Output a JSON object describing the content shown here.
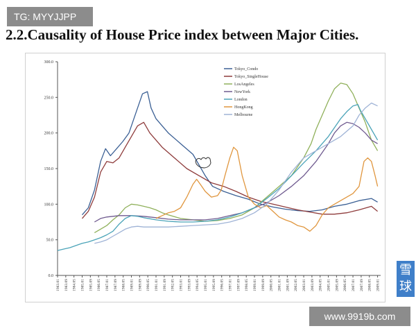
{
  "watermark": {
    "telegram": "TG: MYYJJPP",
    "url": "www.9919b.com",
    "side_glyphs": "雪球"
  },
  "page_title": "2.2.Causality of House Price index between Major Cities.",
  "colors": {
    "Tokyo_Condo": "#3a5f94",
    "Tokyo_SingleHouse": "#8e3b3b",
    "LosAngeles": "#8fb05a",
    "NewYork": "#6f5a8f",
    "London": "#4aa3b8",
    "HongKong": "#e0963e",
    "Melbourne": "#9fb3d6"
  },
  "chart_data": {
    "type": "line",
    "title": "",
    "xlabel": "",
    "ylabel": "",
    "ylim": [
      0,
      300
    ],
    "yticks": [
      "0.0",
      "50.0",
      "100.0",
      "150.0",
      "200.0",
      "250.0",
      "300.0"
    ],
    "xlim": [
      1983,
      2009.25
    ],
    "xticks": [
      "1983.01",
      "1983.09",
      "1984.05",
      "1985.01",
      "1985.09",
      "1986.05",
      "1987.01",
      "1987.09",
      "1988.05",
      "1989.01",
      "1989.09",
      "1990.05",
      "1991.01",
      "1991.09",
      "1992.05",
      "1993.01",
      "1993.09",
      "1994.05",
      "1995.01",
      "1995.09",
      "1996.05",
      "1997.01",
      "1997.09",
      "1998.05",
      "1999.01",
      "1999.09",
      "2000.05",
      "2001.01",
      "2001.09",
      "2002.05",
      "2003.01",
      "2003.09",
      "2004.05",
      "2005.01",
      "2005.09",
      "2006.05",
      "2007.01",
      "2007.09",
      "2008.05",
      "2009.01"
    ],
    "series": [
      {
        "name": "Tokyo_Condo",
        "color_key": "Tokyo_Condo",
        "x": [
          1985.0,
          1985.5,
          1986.0,
          1986.5,
          1986.9,
          1987.3,
          1987.8,
          1988.3,
          1988.8,
          1989.4,
          1989.9,
          1990.3,
          1990.6,
          1991.0,
          1991.5,
          1992.0,
          1993.0,
          1994.0,
          1995.0,
          1995.6,
          1996.5,
          1997.5,
          1998.5,
          1999.5,
          2000.5,
          2001.5,
          2002.5,
          2003.5,
          2004.5,
          2005.5,
          2006.5,
          2007.5,
          2008.5,
          2009.0
        ],
        "y": [
          85,
          95,
          120,
          160,
          178,
          168,
          178,
          188,
          200,
          230,
          255,
          258,
          235,
          220,
          210,
          200,
          185,
          170,
          140,
          125,
          118,
          112,
          107,
          100,
          96,
          93,
          91,
          90,
          92,
          97,
          100,
          105,
          108,
          103
        ]
      },
      {
        "name": "Tokyo_SingleHouse",
        "color_key": "Tokyo_SingleHouse",
        "x": [
          1985.0,
          1985.5,
          1986.0,
          1986.5,
          1987.0,
          1987.5,
          1988.0,
          1988.5,
          1989.0,
          1989.5,
          1990.0,
          1990.5,
          1991.0,
          1991.5,
          1992.5,
          1993.5,
          1994.5,
          1995.5,
          1996.5,
          1997.5,
          1998.5,
          1999.5,
          2000.5,
          2001.5,
          2002.5,
          2003.5,
          2004.5,
          2005.5,
          2006.5,
          2007.5,
          2008.5,
          2009.0
        ],
        "y": [
          80,
          90,
          110,
          145,
          160,
          158,
          165,
          180,
          195,
          210,
          215,
          200,
          190,
          180,
          165,
          150,
          140,
          130,
          125,
          118,
          110,
          104,
          100,
          96,
          92,
          89,
          86,
          86,
          88,
          92,
          97,
          90
        ]
      },
      {
        "name": "LosAngeles",
        "color_key": "LosAngeles",
        "x": [
          1986.0,
          1986.5,
          1987.0,
          1987.5,
          1988.0,
          1988.5,
          1989.0,
          1989.5,
          1990.0,
          1990.5,
          1991.0,
          1991.5,
          1992.0,
          1993.0,
          1994.0,
          1995.0,
          1996.0,
          1997.0,
          1998.0,
          1999.0,
          2000.0,
          2001.0,
          2002.0,
          2003.0,
          2003.6,
          2004.0,
          2004.5,
          2005.0,
          2005.5,
          2006.0,
          2006.5,
          2007.0,
          2007.5,
          2008.0,
          2008.5,
          2009.0
        ],
        "y": [
          60,
          65,
          70,
          78,
          85,
          95,
          100,
          99,
          97,
          95,
          92,
          88,
          85,
          80,
          78,
          76,
          77,
          80,
          85,
          95,
          110,
          125,
          140,
          165,
          185,
          205,
          225,
          245,
          262,
          270,
          268,
          255,
          235,
          215,
          190,
          175
        ]
      },
      {
        "name": "NewYork",
        "color_key": "NewYork",
        "x": [
          1986.0,
          1986.5,
          1987.0,
          1987.5,
          1988.0,
          1989.0,
          1990.0,
          1991.0,
          1992.0,
          1993.0,
          1994.0,
          1995.0,
          1996.0,
          1997.0,
          1998.0,
          1999.0,
          2000.0,
          2001.0,
          2002.0,
          2003.0,
          2004.0,
          2005.0,
          2005.5,
          2006.0,
          2006.5,
          2007.0,
          2007.5,
          2008.0,
          2008.5,
          2009.0
        ],
        "y": [
          75,
          80,
          82,
          83,
          84,
          84,
          83,
          81,
          79,
          78,
          78,
          78,
          80,
          84,
          88,
          95,
          102,
          112,
          125,
          140,
          160,
          185,
          200,
          210,
          215,
          213,
          208,
          200,
          190,
          185
        ]
      },
      {
        "name": "London",
        "color_key": "London",
        "x": [
          1983.0,
          1983.5,
          1984.0,
          1984.5,
          1985.0,
          1985.5,
          1986.0,
          1986.5,
          1987.0,
          1987.5,
          1988.0,
          1988.5,
          1989.0,
          1989.5,
          1990.0,
          1991.0,
          1992.0,
          1993.0,
          1994.0,
          1995.0,
          1996.0,
          1997.0,
          1998.0,
          1999.0,
          2000.0,
          2001.0,
          2002.0,
          2003.0,
          2004.0,
          2005.0,
          2005.6,
          2006.0,
          2006.5,
          2007.0,
          2007.4,
          2007.6,
          2008.0,
          2008.5,
          2009.0
        ],
        "y": [
          35,
          37,
          39,
          42,
          45,
          47,
          50,
          53,
          57,
          62,
          72,
          80,
          84,
          83,
          81,
          78,
          76,
          75,
          75,
          76,
          78,
          82,
          88,
          95,
          108,
          122,
          140,
          158,
          175,
          195,
          210,
          220,
          230,
          238,
          240,
          232,
          220,
          205,
          190
        ]
      },
      {
        "name": "HongKong",
        "color_key": "HongKong",
        "x": [
          1991.0,
          1991.5,
          1992.0,
          1992.5,
          1993.0,
          1993.5,
          1994.0,
          1994.3,
          1994.6,
          1995.0,
          1995.5,
          1996.0,
          1996.3,
          1996.6,
          1997.0,
          1997.3,
          1997.6,
          1998.0,
          1998.5,
          1999.0,
          1999.5,
          2000.0,
          2000.5,
          2001.0,
          2001.5,
          2002.0,
          2002.5,
          2003.0,
          2003.5,
          2004.0,
          2004.5,
          2005.0,
          2005.5,
          2006.0,
          2006.5,
          2007.0,
          2007.5,
          2007.9,
          2008.2,
          2008.5,
          2008.8,
          2009.0
        ],
        "y": [
          80,
          84,
          88,
          90,
          95,
          110,
          128,
          135,
          128,
          118,
          110,
          112,
          120,
          140,
          165,
          180,
          175,
          140,
          110,
          100,
          95,
          98,
          90,
          82,
          78,
          75,
          70,
          68,
          62,
          70,
          85,
          95,
          100,
          105,
          110,
          115,
          125,
          160,
          165,
          160,
          140,
          125
        ]
      },
      {
        "name": "Melbourne",
        "color_key": "Melbourne",
        "x": [
          1986.0,
          1986.5,
          1987.0,
          1987.5,
          1988.0,
          1988.5,
          1989.0,
          1989.5,
          1990.0,
          1991.0,
          1992.0,
          1993.0,
          1994.0,
          1995.0,
          1996.0,
          1997.0,
          1998.0,
          1999.0,
          2000.0,
          2001.0,
          2002.0,
          2003.0,
          2004.0,
          2005.0,
          2006.0,
          2007.0,
          2007.5,
          2008.0,
          2008.5,
          2009.0
        ],
        "y": [
          45,
          47,
          50,
          55,
          60,
          65,
          68,
          69,
          68,
          68,
          68,
          69,
          70,
          71,
          72,
          75,
          80,
          88,
          100,
          120,
          145,
          165,
          175,
          185,
          195,
          210,
          225,
          235,
          242,
          238
        ]
      }
    ],
    "legend": {
      "position": "top-right",
      "labels": [
        "Tokyo_Condo",
        "Tokyo_SingleHouse",
        "LosAngeles",
        "NewYork",
        "London",
        "HongKong",
        "Melbourne"
      ]
    },
    "grid": false
  }
}
